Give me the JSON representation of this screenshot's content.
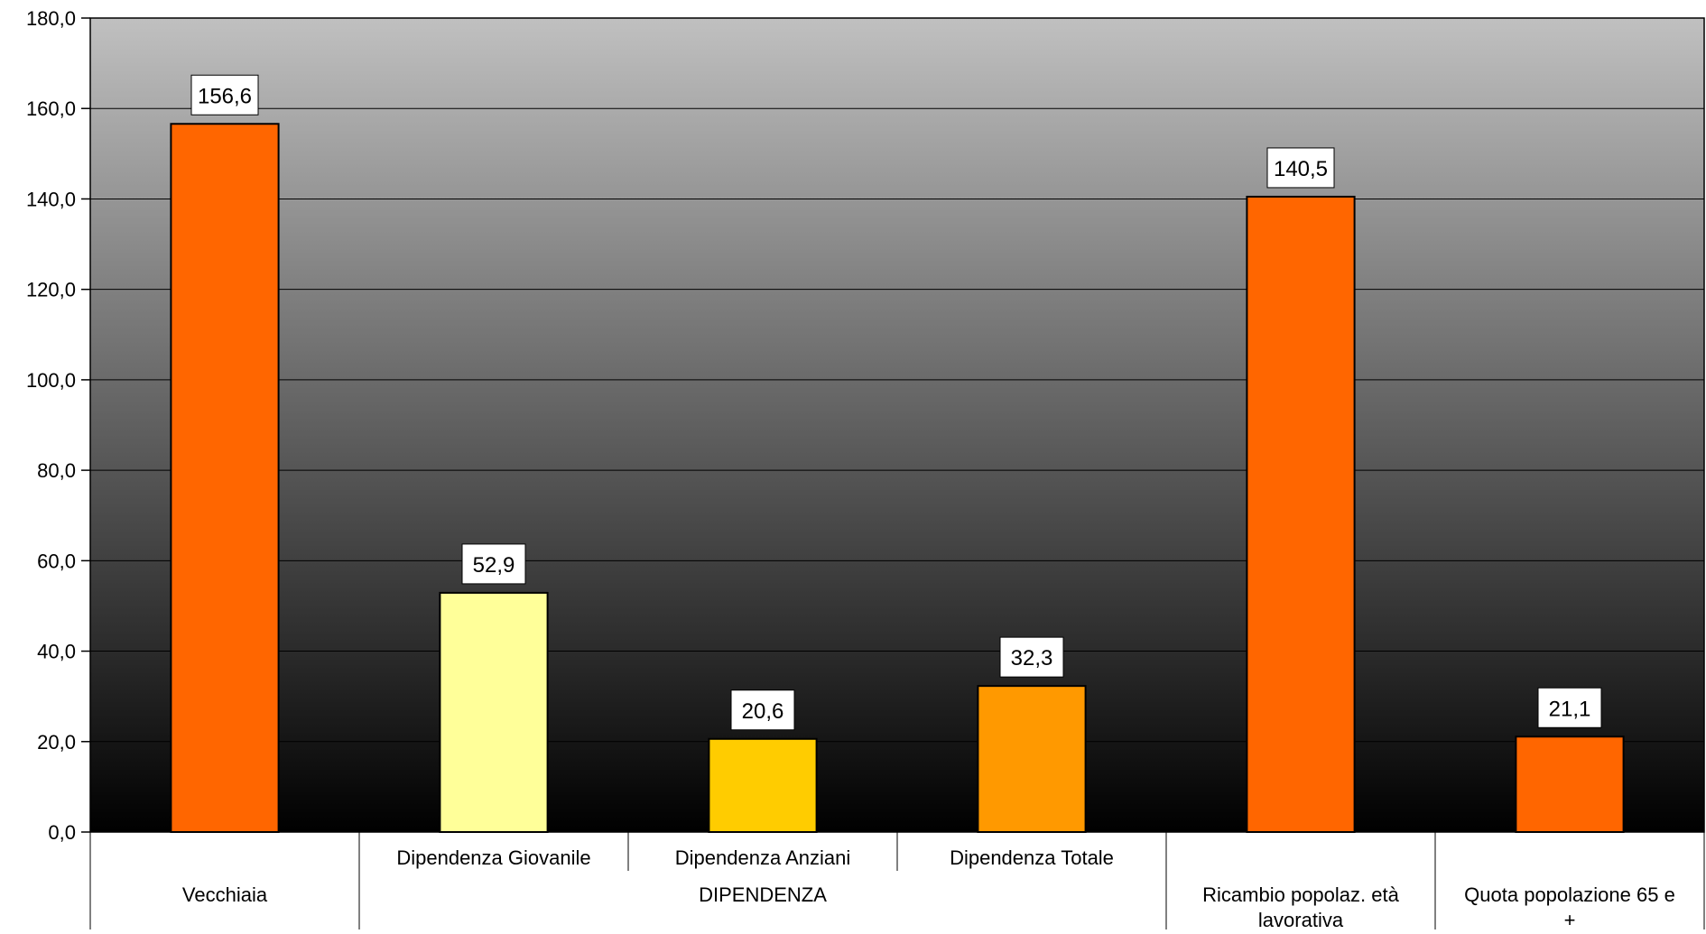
{
  "chart_data": {
    "type": "bar",
    "title": "",
    "xlabel": "",
    "ylabel": "",
    "ylim": [
      0,
      180
    ],
    "yticks": [
      0,
      20,
      40,
      60,
      80,
      100,
      120,
      140,
      160,
      180
    ],
    "ytick_labels": [
      "0,0",
      "20,0",
      "40,0",
      "60,0",
      "80,0",
      "100,0",
      "120,0",
      "140,0",
      "160,0",
      "180,0"
    ],
    "grid": true,
    "legend": "none",
    "categories": [
      "Vecchiaia",
      "Dipendenza Giovanile",
      "Dipendenza Anziani",
      "Dipendenza Totale",
      "Ricambio popolaz. età lavorativa",
      "Quota popolazione 65 e +"
    ],
    "group_labels": [
      {
        "label": "Vecchiaia",
        "span": [
          0,
          0
        ]
      },
      {
        "label": "DIPENDENZA",
        "span": [
          1,
          3
        ]
      },
      {
        "label": "Ricambio popolaz. età lavorativa",
        "span": [
          4,
          4
        ]
      },
      {
        "label": "Quota popolazione 65 e +",
        "span": [
          5,
          5
        ]
      }
    ],
    "values": [
      156.6,
      52.9,
      20.6,
      32.3,
      140.5,
      21.1
    ],
    "value_labels": [
      "156,6",
      "52,9",
      "20,6",
      "32,3",
      "140,5",
      "21,1"
    ],
    "bar_colors": [
      "#FF6600",
      "#FFFF99",
      "#FFCC00",
      "#FF9900",
      "#FF6600",
      "#FF6600"
    ],
    "background_gradient": [
      "#C0C0C0",
      "#000000"
    ]
  }
}
